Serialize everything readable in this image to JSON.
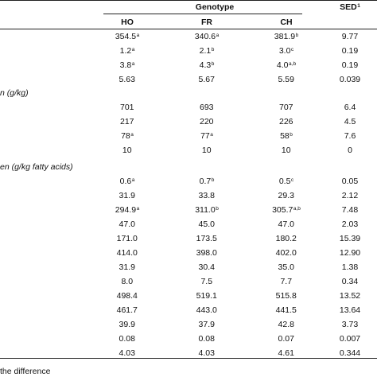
{
  "header": {
    "genotype": "Genotype",
    "ho": "HO",
    "fr": "FR",
    "ch": "CH",
    "sed": "SED",
    "sed_sup": "1"
  },
  "sections": [
    {
      "label": "n (g/kg)"
    },
    {
      "label": "en (g/kg fatty acids)"
    }
  ],
  "group1": [
    {
      "ho": "354.5",
      "ho_sup": "a",
      "fr": "340.6",
      "fr_sup": "a",
      "ch": "381.9",
      "ch_sup": "b",
      "sed": "9.77"
    },
    {
      "ho": "1.2",
      "ho_sup": "a",
      "fr": "2.1",
      "fr_sup": "b",
      "ch": "3.0",
      "ch_sup": "c",
      "sed": "0.19"
    },
    {
      "ho": "3.8",
      "ho_sup": "a",
      "fr": "4.3",
      "fr_sup": "b",
      "ch": "4.0",
      "ch_sup": "a,b",
      "sed": "0.19"
    },
    {
      "ho": "5.63",
      "ho_sup": "",
      "fr": "5.67",
      "fr_sup": "",
      "ch": "5.59",
      "ch_sup": "",
      "sed": "0.039"
    }
  ],
  "group2": [
    {
      "ho": "701",
      "ho_sup": "",
      "fr": "693",
      "fr_sup": "",
      "ch": "707",
      "ch_sup": "",
      "sed": "6.4"
    },
    {
      "ho": "217",
      "ho_sup": "",
      "fr": "220",
      "fr_sup": "",
      "ch": "226",
      "ch_sup": "",
      "sed": "4.5"
    },
    {
      "ho": "78",
      "ho_sup": "a",
      "fr": "77",
      "fr_sup": "a",
      "ch": "58",
      "ch_sup": "b",
      "sed": "7.6"
    },
    {
      "ho": "10",
      "ho_sup": "",
      "fr": "10",
      "fr_sup": "",
      "ch": "10",
      "ch_sup": "",
      "sed": "0"
    }
  ],
  "group3": [
    {
      "ho": "0.6",
      "ho_sup": "a",
      "fr": "0.7",
      "fr_sup": "b",
      "ch": "0.5",
      "ch_sup": "c",
      "sed": "0.05"
    },
    {
      "ho": "31.9",
      "ho_sup": "",
      "fr": "33.8",
      "fr_sup": "",
      "ch": "29.3",
      "ch_sup": "",
      "sed": "2.12"
    },
    {
      "ho": "294.9",
      "ho_sup": "a",
      "fr": "311.0",
      "fr_sup": "b",
      "ch": "305.7",
      "ch_sup": "a,b",
      "sed": "7.48"
    },
    {
      "ho": "47.0",
      "ho_sup": "",
      "fr": "45.0",
      "fr_sup": "",
      "ch": "47.0",
      "ch_sup": "",
      "sed": "2.03"
    },
    {
      "ho": "171.0",
      "ho_sup": "",
      "fr": "173.5",
      "fr_sup": "",
      "ch": "180.2",
      "ch_sup": "",
      "sed": "15.39"
    },
    {
      "ho": "414.0",
      "ho_sup": "",
      "fr": "398.0",
      "fr_sup": "",
      "ch": "402.0",
      "ch_sup": "",
      "sed": "12.90"
    },
    {
      "ho": "31.9",
      "ho_sup": "",
      "fr": "30.4",
      "fr_sup": "",
      "ch": "35.0",
      "ch_sup": "",
      "sed": "1.38"
    },
    {
      "ho": "8.0",
      "ho_sup": "",
      "fr": "7.5",
      "fr_sup": "",
      "ch": "7.7",
      "ch_sup": "",
      "sed": "0.34"
    },
    {
      "ho": "498.4",
      "ho_sup": "",
      "fr": "519.1",
      "fr_sup": "",
      "ch": "515.8",
      "ch_sup": "",
      "sed": "13.52"
    },
    {
      "ho": "461.7",
      "ho_sup": "",
      "fr": "443.0",
      "fr_sup": "",
      "ch": "441.5",
      "ch_sup": "",
      "sed": "13.64"
    },
    {
      "ho": "39.9",
      "ho_sup": "",
      "fr": "37.9",
      "fr_sup": "",
      "ch": "42.8",
      "ch_sup": "",
      "sed": "3.73"
    },
    {
      "ho": "0.08",
      "ho_sup": "",
      "fr": "0.08",
      "fr_sup": "",
      "ch": "0.07",
      "ch_sup": "",
      "sed": "0.007"
    },
    {
      "ho": "4.03",
      "ho_sup": "",
      "fr": "4.03",
      "fr_sup": "",
      "ch": "4.61",
      "ch_sup": "",
      "sed": "0.344"
    }
  ],
  "footnote": "the difference"
}
